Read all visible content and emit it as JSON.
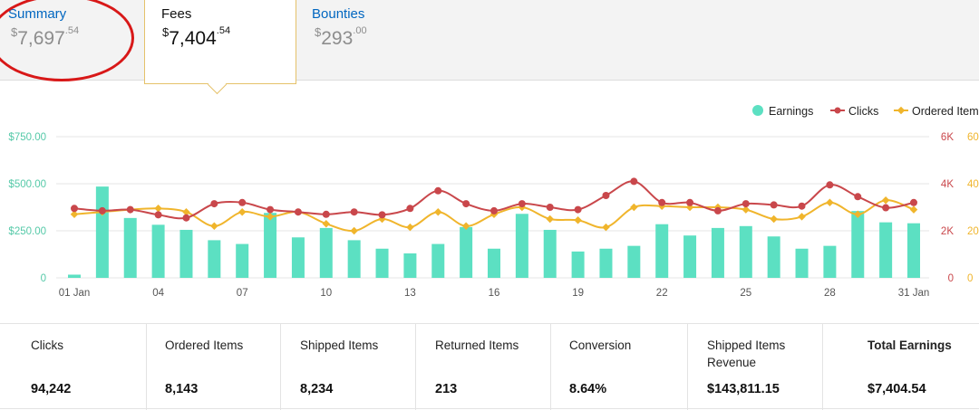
{
  "tabs": [
    {
      "title": "Summary",
      "currency": "$",
      "whole": "7,697",
      "cents": ".54"
    },
    {
      "title": "Fees",
      "currency": "$",
      "whole": "7,404",
      "cents": ".54"
    },
    {
      "title": "Bounties",
      "currency": "$",
      "whole": "293",
      "cents": ".00"
    }
  ],
  "colors": {
    "earnings": "#5ce0c2",
    "clicks": "#c9474b",
    "ordered": "#f0b52c",
    "highlight": "#d81818"
  },
  "chart_data": {
    "type": "bar",
    "x_tick_labels": [
      "01 Jan",
      "04",
      "07",
      "10",
      "13",
      "16",
      "19",
      "22",
      "25",
      "28",
      "31 Jan"
    ],
    "legend": [
      "Earnings",
      "Clicks",
      "Ordered Items"
    ],
    "legend_position": "top-right",
    "y_left": {
      "ticks": [
        "$750.00",
        "$500.00",
        "$250.00",
        "0"
      ],
      "range": [
        0,
        750
      ]
    },
    "y_right_clicks": {
      "ticks": [
        "6K",
        "4K",
        "2K",
        "0"
      ],
      "range": [
        0,
        6000
      ]
    },
    "y_right_ordered": {
      "ticks": [
        "60",
        "40",
        "20",
        "0"
      ],
      "range": [
        0,
        600
      ]
    },
    "x": [
      1,
      2,
      3,
      4,
      5,
      6,
      7,
      8,
      9,
      10,
      11,
      12,
      13,
      14,
      15,
      16,
      17,
      18,
      19,
      20,
      21,
      22,
      23,
      24,
      25,
      26,
      27,
      28,
      29,
      30,
      31
    ],
    "series": [
      {
        "name": "Earnings",
        "type": "bar",
        "axis": "left",
        "values": [
          17,
          485,
          318,
          282,
          255,
          200,
          180,
          345,
          215,
          265,
          200,
          155,
          130,
          180,
          270,
          155,
          340,
          255,
          140,
          155,
          170,
          285,
          225,
          265,
          275,
          220,
          155,
          170,
          355,
          295,
          290
        ]
      },
      {
        "name": "Clicks",
        "type": "line",
        "axis": "right-clicks",
        "values": [
          2950,
          2850,
          2900,
          2680,
          2550,
          3150,
          3200,
          2900,
          2800,
          2700,
          2800,
          2680,
          2950,
          3700,
          3150,
          2850,
          3150,
          3000,
          2900,
          3500,
          4100,
          3200,
          3200,
          2850,
          3150,
          3100,
          3050,
          3950,
          3450,
          2980,
          3200
        ]
      },
      {
        "name": "Ordered Items",
        "type": "line",
        "axis": "right-ordered",
        "values": [
          270,
          280,
          290,
          295,
          280,
          220,
          280,
          260,
          280,
          230,
          200,
          250,
          215,
          280,
          220,
          270,
          300,
          250,
          245,
          215,
          300,
          305,
          300,
          300,
          290,
          250,
          260,
          320,
          270,
          330,
          290
        ]
      }
    ]
  },
  "stats": [
    {
      "label": "Clicks",
      "value": "94,242"
    },
    {
      "label": "Ordered Items",
      "value": "8,143"
    },
    {
      "label": "Shipped Items",
      "value": "8,234"
    },
    {
      "label": "Returned Items",
      "value": "213"
    },
    {
      "label": "Conversion",
      "value": "8.64%"
    },
    {
      "label": "Shipped Items Revenue",
      "value": "$143,811.15"
    },
    {
      "label": "Total Earnings",
      "value": "$7,404.54"
    }
  ]
}
